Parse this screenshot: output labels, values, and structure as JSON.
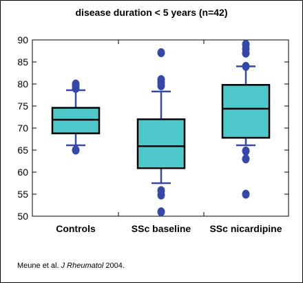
{
  "chart_data": {
    "type": "box",
    "title": "disease duration < 5 years (n=42)",
    "categories": [
      "Controls",
      "SSc baseline",
      "SSc nicardipine"
    ],
    "ylim": [
      50,
      90
    ],
    "yticks": [
      50,
      55,
      60,
      65,
      70,
      75,
      80,
      85,
      90
    ],
    "grid": false,
    "colors": {
      "box_fill": "#4fc8cc",
      "whisker": "#3448a8",
      "outlier": "#3448a8",
      "box_edge": "#000000"
    },
    "boxes": [
      {
        "category": "Controls",
        "whisker_low": 66.1,
        "q1": 68.8,
        "median": 71.9,
        "q3": 74.6,
        "whisker_high": 78.6,
        "outliers": [
          65.0,
          79.0,
          79.6,
          80.0
        ]
      },
      {
        "category": "SSc baseline",
        "whisker_low": 57.5,
        "q1": 60.9,
        "median": 65.9,
        "q3": 72.0,
        "whisker_high": 78.3,
        "outliers": [
          51.0,
          54.8,
          55.8,
          79.6,
          80.3,
          81.0,
          87.1
        ]
      },
      {
        "category": "SSc nicardipine",
        "whisker_low": 66.1,
        "q1": 67.8,
        "median": 74.4,
        "q3": 79.8,
        "whisker_high": 84.0,
        "outliers": [
          55.0,
          63.0,
          64.8,
          84.0,
          87.0,
          88.0,
          89.0
        ]
      }
    ]
  },
  "citation": {
    "prefix": "Meune et al. ",
    "journal": "J Rheumatol",
    "suffix": " 2004."
  }
}
